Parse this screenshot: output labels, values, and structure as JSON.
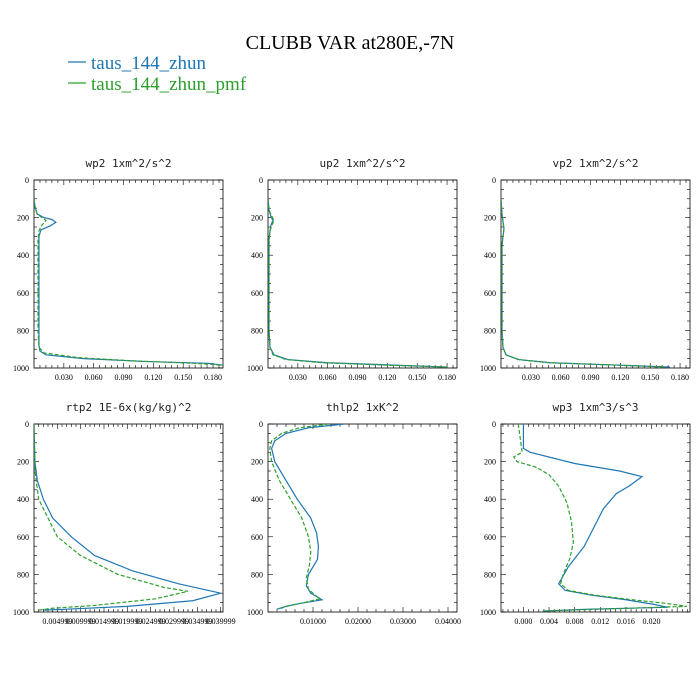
{
  "figure": {
    "title": "CLUBB VAR at280E,-7N",
    "legend": [
      {
        "label": "taus_144_zhun",
        "color": "#1f77b4"
      },
      {
        "label": "taus_144_zhun_pmf",
        "color": "#2ca02c"
      }
    ]
  },
  "chart_data": [
    {
      "type": "line",
      "title": "wp2   1xm^2/s^2",
      "xlim": [
        0,
        0.19
      ],
      "ylim": [
        1000,
        0
      ],
      "xticks": [
        0.03,
        0.06,
        0.09,
        0.12,
        0.15,
        0.18
      ],
      "xtick_labels": [
        "0.030",
        "0.060",
        "0.090",
        "0.120",
        "0.150",
        "0.180"
      ],
      "yticks": [
        0,
        200,
        400,
        600,
        800,
        1000
      ],
      "series": [
        {
          "name": "taus_144_zhun",
          "color": "#1f77b4",
          "style": "solid",
          "x": [
            0.0,
            0.001,
            0.003,
            0.01,
            0.018,
            0.022,
            0.016,
            0.007,
            0.005,
            0.005,
            0.005,
            0.005,
            0.005,
            0.006,
            0.012,
            0.05,
            0.11,
            0.175,
            0.19
          ],
          "y": [
            100,
            140,
            180,
            200,
            210,
            225,
            245,
            265,
            300,
            400,
            600,
            800,
            880,
            910,
            930,
            950,
            965,
            975,
            985
          ]
        },
        {
          "name": "taus_144_zhun_pmf",
          "color": "#2ca02c",
          "style": "dashed",
          "x": [
            0.0,
            0.001,
            0.003,
            0.008,
            0.012,
            0.008,
            0.005,
            0.004,
            0.004,
            0.004,
            0.004,
            0.005,
            0.01,
            0.045,
            0.1,
            0.16,
            0.19
          ],
          "y": [
            100,
            140,
            180,
            200,
            215,
            240,
            270,
            320,
            400,
            600,
            800,
            890,
            920,
            945,
            962,
            975,
            985
          ]
        }
      ]
    },
    {
      "type": "line",
      "title": "up2   1xm^2/s^2",
      "xlim": [
        0,
        0.19
      ],
      "ylim": [
        1000,
        0
      ],
      "xticks": [
        0.03,
        0.06,
        0.09,
        0.12,
        0.15,
        0.18
      ],
      "xtick_labels": [
        "0.030",
        "0.060",
        "0.090",
        "0.120",
        "0.150",
        "0.180"
      ],
      "yticks": [
        0,
        200,
        400,
        600,
        800,
        1000
      ],
      "series": [
        {
          "name": "taus_144_zhun",
          "color": "#1f77b4",
          "style": "solid",
          "x": [
            0.0,
            0.001,
            0.003,
            0.005,
            0.003,
            0.002,
            0.001,
            0.001,
            0.001,
            0.002,
            0.006,
            0.02,
            0.06,
            0.13,
            0.18
          ],
          "y": [
            100,
            160,
            195,
            215,
            240,
            270,
            320,
            500,
            800,
            890,
            930,
            955,
            972,
            985,
            995
          ]
        },
        {
          "name": "taus_144_zhun_pmf",
          "color": "#2ca02c",
          "style": "dashed",
          "x": [
            0.0,
            0.001,
            0.004,
            0.006,
            0.004,
            0.002,
            0.001,
            0.001,
            0.001,
            0.002,
            0.005,
            0.018,
            0.055,
            0.12,
            0.18
          ],
          "y": [
            100,
            160,
            195,
            215,
            240,
            270,
            320,
            500,
            800,
            890,
            930,
            955,
            972,
            985,
            995
          ]
        }
      ]
    },
    {
      "type": "line",
      "title": "vp2   1xm^2/s^2",
      "xlim": [
        0,
        0.19
      ],
      "ylim": [
        1000,
        0
      ],
      "xticks": [
        0.03,
        0.06,
        0.09,
        0.12,
        0.15,
        0.18
      ],
      "xtick_labels": [
        "0.030",
        "0.060",
        "0.090",
        "0.120",
        "0.150",
        "0.180"
      ],
      "yticks": [
        0,
        200,
        400,
        600,
        800,
        1000
      ],
      "series": [
        {
          "name": "taus_144_zhun",
          "color": "#1f77b4",
          "style": "solid",
          "x": [
            0.0,
            0.001,
            0.002,
            0.003,
            0.002,
            0.001,
            0.001,
            0.001,
            0.002,
            0.005,
            0.018,
            0.05,
            0.12,
            0.17
          ],
          "y": [
            100,
            180,
            220,
            260,
            300,
            350,
            500,
            800,
            890,
            930,
            955,
            972,
            985,
            995
          ]
        },
        {
          "name": "taus_144_zhun_pmf",
          "color": "#2ca02c",
          "style": "dashed",
          "x": [
            0.0,
            0.001,
            0.002,
            0.003,
            0.002,
            0.001,
            0.001,
            0.001,
            0.002,
            0.005,
            0.017,
            0.048,
            0.115,
            0.165
          ],
          "y": [
            100,
            180,
            220,
            260,
            300,
            350,
            500,
            800,
            890,
            930,
            955,
            972,
            985,
            995
          ]
        }
      ]
    },
    {
      "type": "line",
      "title": "rtp2   1E-6x(kg/kg)^2",
      "xlim": [
        0,
        0.0405
      ],
      "ylim": [
        1000,
        0
      ],
      "xticks": [
        0.005,
        0.01,
        0.015,
        0.02,
        0.025,
        0.03,
        0.035,
        0.04
      ],
      "xtick_labels": [
        "0.004999",
        "0.009999",
        "0.014999",
        "0.019999",
        "0.024999",
        "0.029999",
        "0.034999",
        "0.039999"
      ],
      "yticks": [
        0,
        200,
        400,
        600,
        800,
        1000
      ],
      "series": [
        {
          "name": "taus_144_zhun",
          "color": "#1f77b4",
          "style": "solid",
          "x": [
            0.0,
            0.0002,
            0.0007,
            0.002,
            0.004,
            0.008,
            0.013,
            0.021,
            0.031,
            0.04,
            0.034,
            0.02,
            0.007,
            0.002
          ],
          "y": [
            0,
            200,
            300,
            400,
            500,
            600,
            700,
            780,
            850,
            900,
            940,
            970,
            985,
            990
          ]
        },
        {
          "name": "taus_144_zhun_pmf",
          "color": "#2ca02c",
          "style": "dashed",
          "x": [
            0.0,
            0.0002,
            0.001,
            0.003,
            0.005,
            0.01,
            0.018,
            0.028,
            0.033,
            0.026,
            0.013,
            0.004,
            0.001
          ],
          "y": [
            0,
            250,
            400,
            500,
            600,
            700,
            800,
            870,
            890,
            930,
            965,
            980,
            990
          ]
        }
      ]
    },
    {
      "type": "line",
      "title": "thlp2   1xK^2",
      "xlim": [
        0,
        0.042
      ],
      "ylim": [
        1000,
        0
      ],
      "xticks": [
        0.01,
        0.02,
        0.03,
        0.04
      ],
      "xtick_labels": [
        "0.01000",
        "0.02000",
        "0.03000",
        "0.04000"
      ],
      "yticks": [
        0,
        200,
        400,
        600,
        800,
        1000
      ],
      "series": [
        {
          "name": "taus_144_zhun",
          "color": "#1f77b4",
          "style": "solid",
          "x": [
            0.017,
            0.009,
            0.004,
            0.0015,
            0.0008,
            0.0015,
            0.004,
            0.0065,
            0.0095,
            0.0108,
            0.0112,
            0.011,
            0.009,
            0.0085,
            0.0095,
            0.011,
            0.012,
            0.007,
            0.004,
            0.002
          ],
          "y": [
            0,
            20,
            50,
            90,
            130,
            200,
            300,
            400,
            500,
            580,
            650,
            720,
            800,
            860,
            900,
            920,
            935,
            955,
            970,
            985
          ]
        },
        {
          "name": "taus_144_zhun_pmf",
          "color": "#2ca02c",
          "style": "dashed",
          "x": [
            0.0135,
            0.007,
            0.003,
            0.0008,
            0.0004,
            0.0008,
            0.0025,
            0.005,
            0.0075,
            0.009,
            0.0095,
            0.0092,
            0.0085,
            0.009,
            0.0105,
            0.0115,
            0.008,
            0.004,
            0.0025
          ],
          "y": [
            0,
            20,
            50,
            90,
            130,
            200,
            300,
            400,
            500,
            600,
            680,
            750,
            820,
            880,
            910,
            930,
            950,
            970,
            985
          ]
        }
      ]
    },
    {
      "type": "line",
      "title": "wp3   1xm^3/s^3",
      "xlim": [
        -0.0035,
        0.026
      ],
      "ylim": [
        1000,
        0
      ],
      "xticks": [
        0.0,
        0.004,
        0.008,
        0.012,
        0.016,
        0.02
      ],
      "xtick_labels": [
        "0.000",
        "0.004",
        "0.008",
        "0.012",
        "0.016",
        "0.020"
      ],
      "yticks": [
        0,
        200,
        400,
        600,
        800,
        1000
      ],
      "series": [
        {
          "name": "taus_144_zhun",
          "color": "#1f77b4",
          "style": "solid",
          "x": [
            0.0,
            0.0,
            0.001,
            0.008,
            0.015,
            0.0185,
            0.0165,
            0.0145,
            0.0125,
            0.011,
            0.0095,
            0.007,
            0.0055,
            0.0065,
            0.0105,
            0.016,
            0.0205,
            0.0225,
            0.01,
            0.003
          ],
          "y": [
            0,
            130,
            150,
            210,
            250,
            280,
            330,
            370,
            450,
            550,
            650,
            760,
            850,
            885,
            910,
            935,
            960,
            975,
            985,
            995
          ]
        },
        {
          "name": "taus_144_zhun_pmf",
          "color": "#2ca02c",
          "style": "dashed",
          "x": [
            -0.0008,
            -0.0002,
            -0.0015,
            -0.001,
            0.002,
            0.004,
            0.0055,
            0.0068,
            0.0075,
            0.0078,
            0.0072,
            0.0062,
            0.0058,
            0.007,
            0.011,
            0.017,
            0.0225,
            0.0255,
            0.012,
            0.003
          ],
          "y": [
            0,
            150,
            175,
            200,
            230,
            270,
            330,
            420,
            520,
            630,
            720,
            800,
            850,
            885,
            910,
            935,
            955,
            970,
            985,
            995
          ]
        }
      ]
    }
  ]
}
